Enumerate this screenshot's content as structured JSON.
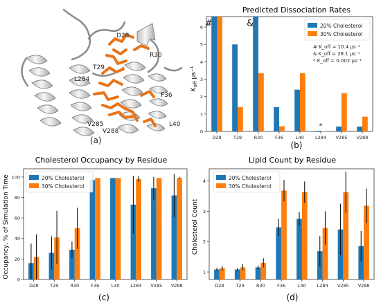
{
  "panel_a": {
    "sublabel": "(a)",
    "residue_labels": [
      "D28",
      "R30",
      "T29",
      "L284",
      "F36",
      "V285",
      "V288",
      "L40"
    ],
    "colors": {
      "ribbon": "#e6e6e6",
      "sticks": "#e8741a"
    }
  },
  "colors": {
    "c20": "#1f77b4",
    "c30": "#ff7f0e"
  },
  "chart_data": [
    {
      "id": "b",
      "type": "bar",
      "sublabel": "(b)",
      "title": "Predicted Dissociation Rates",
      "ylabel": "K_off μs⁻¹",
      "xlabel": "",
      "categories": [
        "D28",
        "T29",
        "R30",
        "F36",
        "L40",
        "L284",
        "V285",
        "V288"
      ],
      "series": [
        {
          "name": "20% Cholesterol",
          "values": [
            6.6,
            5.0,
            6.6,
            1.4,
            2.4,
            0.04,
            0.28,
            0.28
          ]
        },
        {
          "name": "30% Cholesterol",
          "values": [
            6.6,
            1.4,
            3.35,
            0.3,
            3.35,
            0.02,
            2.2,
            0.85
          ]
        }
      ],
      "ylim": [
        0,
        6.6
      ],
      "yticks": [
        0,
        1,
        2,
        3,
        4,
        5,
        6
      ],
      "legend_position": "top-right",
      "grid": false,
      "marks": [
        {
          "text": "#",
          "category": "D28"
        },
        {
          "text": "&",
          "category": "R30"
        },
        {
          "text": "*",
          "category": "L284"
        }
      ],
      "annotations": [
        "# K_off = 10.4 μs⁻¹",
        "& K_off = 28.1 μs⁻¹",
        "*  K_off = 0.002 μs⁻¹"
      ]
    },
    {
      "id": "c",
      "type": "bar",
      "sublabel": "(c)",
      "title": "Cholesterol Occupancy by Residue",
      "ylabel": "Occupancy, % of Simulation Time",
      "xlabel": "",
      "categories": [
        "D28",
        "T29",
        "R30",
        "F36",
        "L40",
        "L284",
        "V285",
        "V288"
      ],
      "series": [
        {
          "name": "20% Cholesterol",
          "values": [
            16,
            26,
            29,
            97,
            99,
            73,
            89,
            82
          ],
          "errors": [
            19,
            16,
            8,
            2,
            0,
            28,
            11,
            21
          ]
        },
        {
          "name": "30% Cholesterol",
          "values": [
            22,
            41,
            50,
            99,
            99,
            98,
            99,
            99
          ],
          "errors": [
            22,
            26,
            20,
            0,
            0,
            3,
            0,
            1
          ]
        }
      ],
      "ylim": [
        0,
        108
      ],
      "yticks": [
        0,
        20,
        40,
        60,
        80,
        100
      ],
      "legend_position": "top-left",
      "grid": false
    },
    {
      "id": "d",
      "type": "bar",
      "sublabel": "(d)",
      "title": "Lipid Count by Residue",
      "ylabel": "Cholesterol Count",
      "xlabel": "",
      "categories": [
        "D28",
        "T29",
        "R30",
        "F36",
        "L40",
        "L284",
        "V285",
        "V288"
      ],
      "series": [
        {
          "name": "20% Cholesterol",
          "values": [
            1.08,
            1.08,
            1.15,
            2.47,
            2.75,
            1.68,
            2.4,
            1.85
          ],
          "errors": [
            0.05,
            0.05,
            0.07,
            0.28,
            0.22,
            0.5,
            0.85,
            0.5
          ]
        },
        {
          "name": "30% Cholesterol",
          "values": [
            1.12,
            1.15,
            1.3,
            3.68,
            3.63,
            2.45,
            3.63,
            3.18
          ],
          "errors": [
            0.08,
            0.1,
            0.15,
            0.35,
            0.35,
            0.55,
            0.68,
            0.57
          ]
        }
      ],
      "ylim": [
        0.75,
        4.4
      ],
      "yticks": [
        1,
        2,
        3,
        4
      ],
      "legend_position": "top-left",
      "grid": false
    }
  ]
}
